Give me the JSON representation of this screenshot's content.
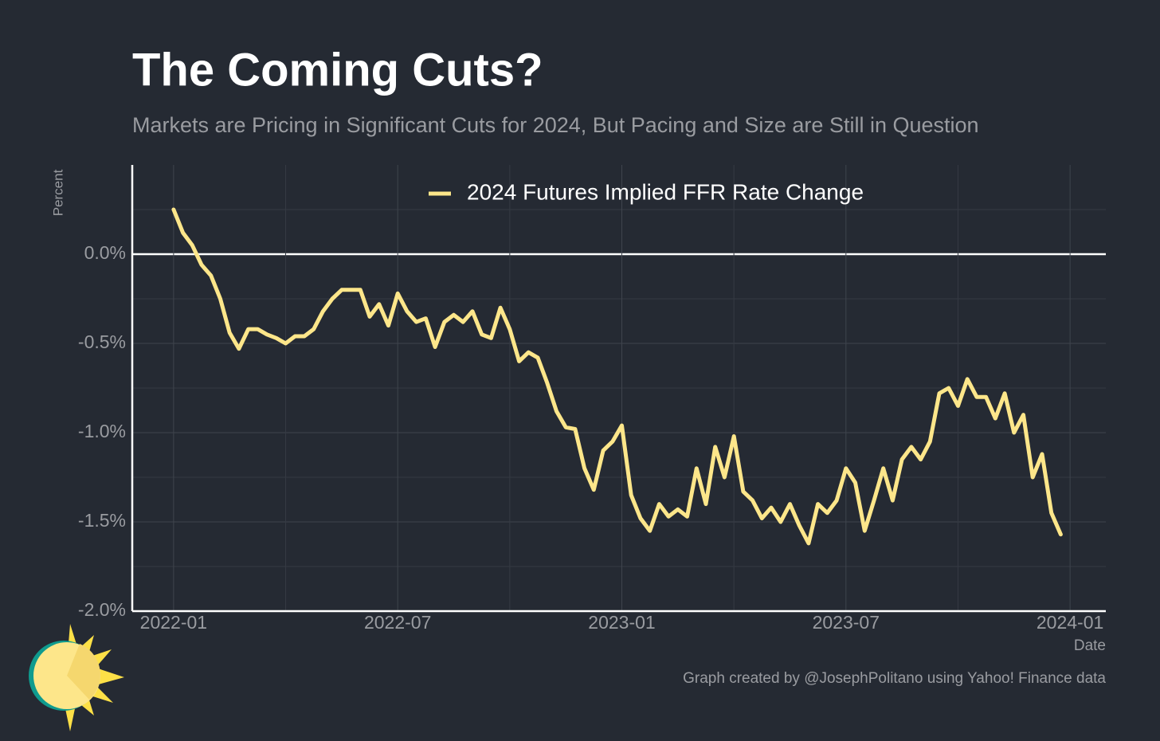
{
  "chart_data": {
    "type": "line",
    "title": "The Coming Cuts?",
    "subtitle": "Markets are Pricing in Significant Cuts for 2024, But Pacing and Size are Still in Question",
    "y_label": "Percent",
    "x_label": "Date",
    "caption": "Graph created by @JosephPolitano using Yahoo! Finance data",
    "legend": "top",
    "grid": true,
    "xlim": [
      "2021-12",
      "2024-02"
    ],
    "xticks": [
      "2022-01",
      "2022-07",
      "2023-01",
      "2023-07",
      "2024-01"
    ],
    "ylim": [
      -2.0,
      0.5
    ],
    "yticks": [
      {
        "value": -2.0,
        "label": "-2.0%"
      },
      {
        "value": -1.5,
        "label": "-1.5%"
      },
      {
        "value": -1.0,
        "label": "-1.0%"
      },
      {
        "value": -0.5,
        "label": "-0.5%"
      },
      {
        "value": 0,
        "label": "0.0%"
      }
    ],
    "x": [
      "2022-01",
      "2022-01",
      "2022-01",
      "2022-01",
      "2022-02",
      "2022-02",
      "2022-02",
      "2022-02",
      "2022-03",
      "2022-03",
      "2022-03",
      "2022-03",
      "2022-04",
      "2022-04",
      "2022-04",
      "2022-04",
      "2022-05",
      "2022-05",
      "2022-05",
      "2022-05",
      "2022-06",
      "2022-06",
      "2022-06",
      "2022-06",
      "2022-07",
      "2022-07",
      "2022-07",
      "2022-07",
      "2022-08",
      "2022-08",
      "2022-08",
      "2022-08",
      "2022-09",
      "2022-09",
      "2022-09",
      "2022-09",
      "2022-10",
      "2022-10",
      "2022-10",
      "2022-10",
      "2022-11",
      "2022-11",
      "2022-11",
      "2022-11",
      "2022-12",
      "2022-12",
      "2022-12",
      "2022-12",
      "2023-01",
      "2023-01",
      "2023-01",
      "2023-01",
      "2023-02",
      "2023-02",
      "2023-02",
      "2023-02",
      "2023-03",
      "2023-03",
      "2023-03",
      "2023-03",
      "2023-04",
      "2023-04",
      "2023-04",
      "2023-04",
      "2023-05",
      "2023-05",
      "2023-05",
      "2023-05",
      "2023-06",
      "2023-06",
      "2023-06",
      "2023-06",
      "2023-07",
      "2023-07",
      "2023-07",
      "2023-07",
      "2023-08",
      "2023-08",
      "2023-08",
      "2023-08",
      "2023-09",
      "2023-09",
      "2023-09",
      "2023-09",
      "2023-10",
      "2023-10",
      "2023-10",
      "2023-10",
      "2023-11",
      "2023-11",
      "2023-11",
      "2023-11",
      "2023-12",
      "2023-12",
      "2023-12",
      "2023-12"
    ],
    "series": [
      {
        "name": "2024 Futures Implied FFR Rate Change",
        "color": "#fde68a",
        "values": [
          0.25,
          0.12,
          0.05,
          -0.06,
          -0.12,
          -0.25,
          -0.44,
          -0.53,
          -0.42,
          -0.42,
          -0.45,
          -0.47,
          -0.5,
          -0.46,
          -0.46,
          -0.42,
          -0.32,
          -0.25,
          -0.2,
          -0.2,
          -0.2,
          -0.35,
          -0.28,
          -0.4,
          -0.22,
          -0.32,
          -0.38,
          -0.36,
          -0.52,
          -0.38,
          -0.34,
          -0.38,
          -0.32,
          -0.45,
          -0.47,
          -0.3,
          -0.42,
          -0.6,
          -0.55,
          -0.58,
          -0.72,
          -0.88,
          -0.97,
          -0.98,
          -1.2,
          -1.32,
          -1.1,
          -1.05,
          -0.96,
          -1.35,
          -1.48,
          -1.55,
          -1.4,
          -1.47,
          -1.43,
          -1.47,
          -1.2,
          -1.4,
          -1.08,
          -1.25,
          -1.02,
          -1.33,
          -1.38,
          -1.48,
          -1.42,
          -1.5,
          -1.4,
          -1.52,
          -1.62,
          -1.4,
          -1.45,
          -1.38,
          -1.2,
          -1.28,
          -1.55,
          -1.38,
          -1.2,
          -1.38,
          -1.15,
          -1.08,
          -1.15,
          -1.05,
          -0.78,
          -0.75,
          -0.85,
          -0.7,
          -0.8,
          -0.8,
          -0.92,
          -0.78,
          -1.0,
          -0.9,
          -1.25,
          -1.12,
          -1.45,
          -1.57
        ]
      }
    ]
  }
}
